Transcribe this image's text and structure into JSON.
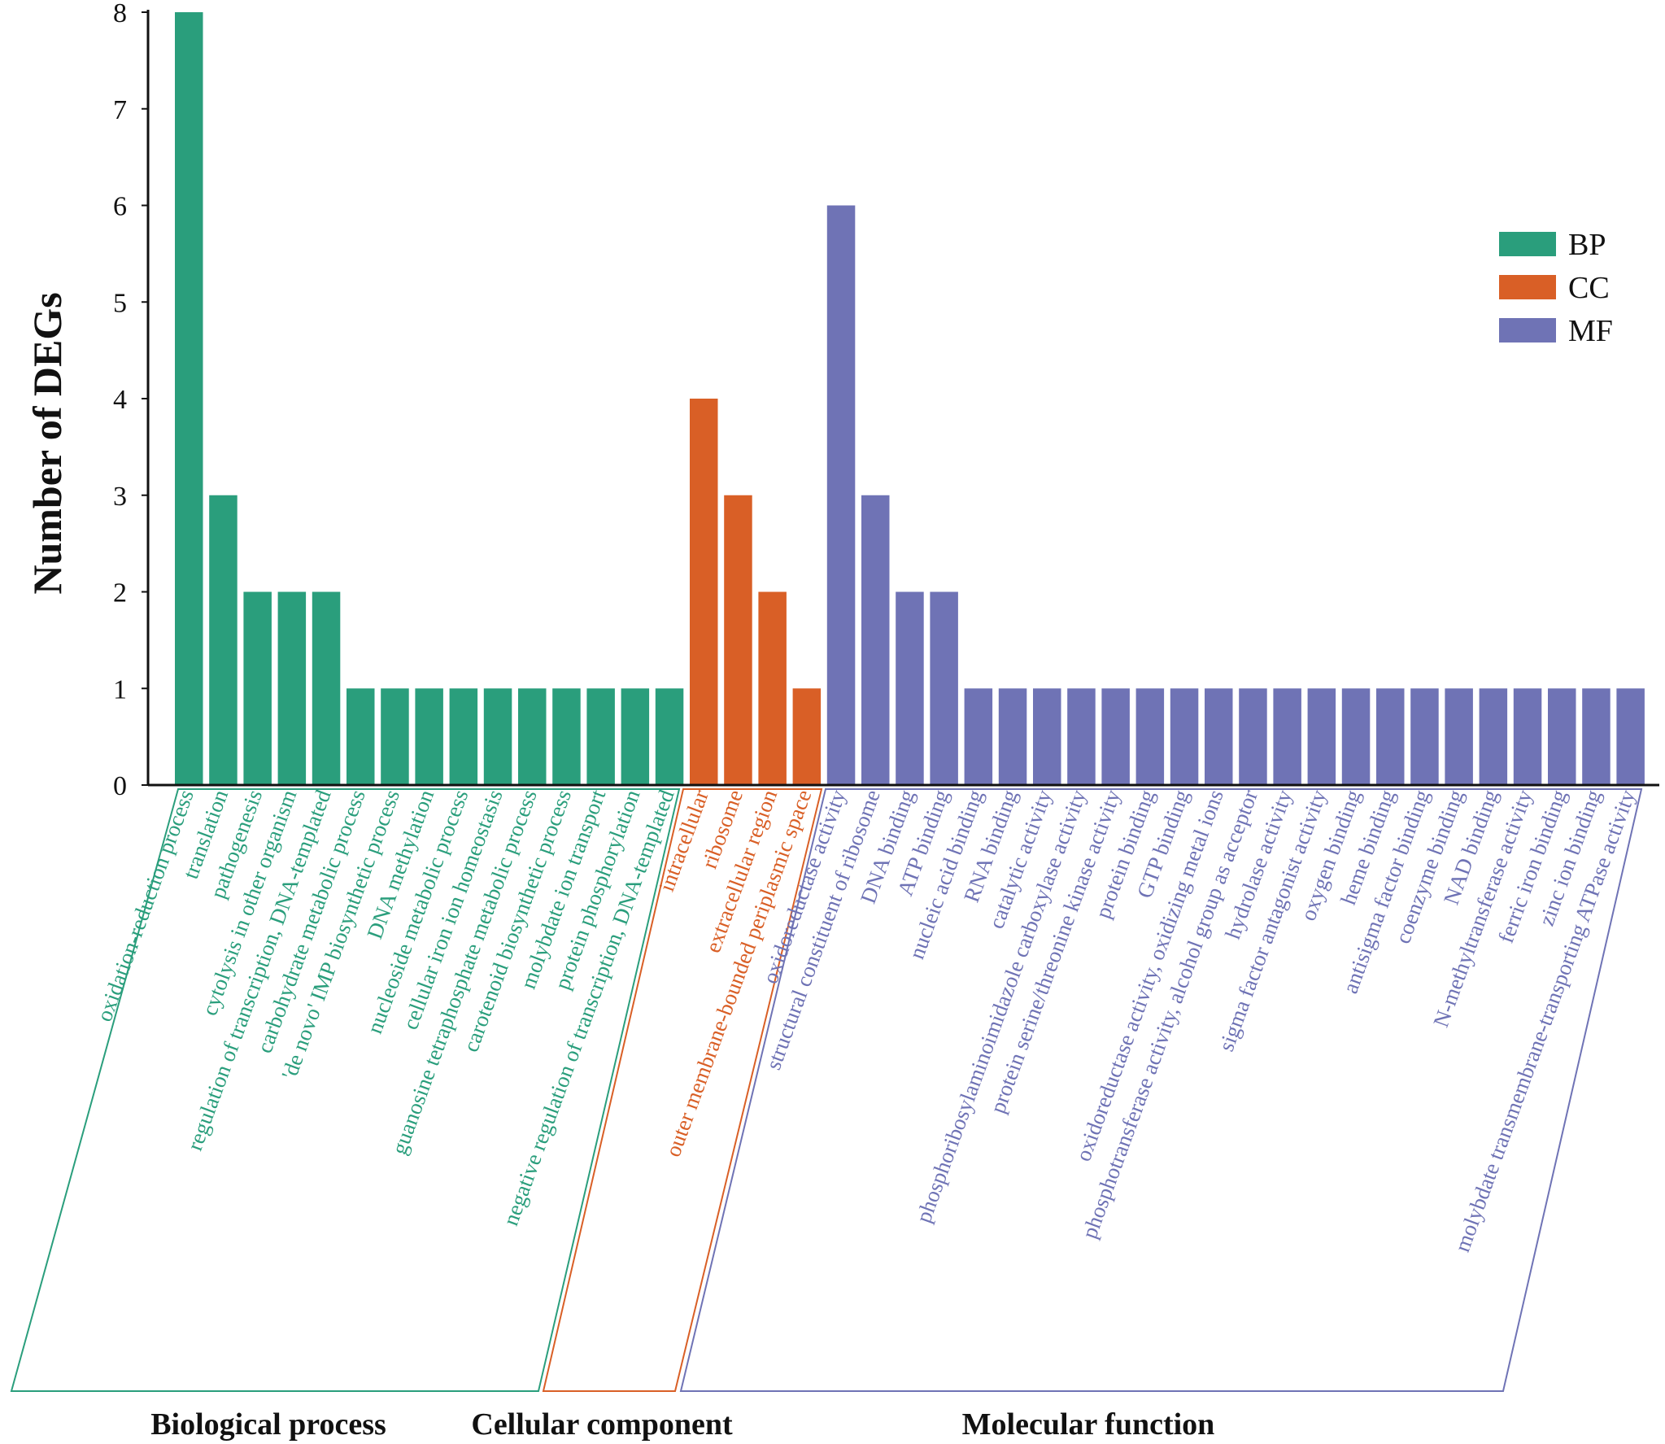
{
  "chart_data": {
    "type": "bar",
    "title": "",
    "xlabel": "",
    "ylabel": "Number of DEGs",
    "ylim": [
      0,
      8
    ],
    "yticks": [
      0,
      1,
      2,
      3,
      4,
      5,
      6,
      7,
      8
    ],
    "legend_position": "top-right",
    "legend": [
      {
        "name": "BP",
        "color": "#2a9e7c"
      },
      {
        "name": "CC",
        "color": "#d95f26"
      },
      {
        "name": "MF",
        "color": "#6f73b5"
      }
    ],
    "groups": [
      {
        "name": "Biological process",
        "key": "BP",
        "color": "#2a9e7c",
        "label_color": "#2a9e7c",
        "categories": [
          "oxidation-reduction process",
          "translation",
          "pathogenesis",
          "cytolysis in other organism",
          "regulation of transcription, DNA-templated",
          "carbohydrate metabolic process",
          "'de novo' IMP biosynthetic process",
          "DNA methylation",
          "nucleoside metabolic process",
          "cellular iron ion homeostasis",
          "guanosine tetraphosphate metabolic process",
          "carotenoid biosynthetic process",
          "molybdate ion transport",
          "protein phosphorylation",
          "negative regulation of transcription, DNA-templated"
        ],
        "values": [
          8,
          3,
          2,
          2,
          2,
          1,
          1,
          1,
          1,
          1,
          1,
          1,
          1,
          1,
          1
        ]
      },
      {
        "name": "Cellular component",
        "key": "CC",
        "color": "#d95f26",
        "label_color": "#d95f26",
        "categories": [
          "intracellular",
          "ribosome",
          "extracellular region",
          "outer membrane-bounded periplasmic space"
        ],
        "values": [
          4,
          3,
          2,
          1
        ]
      },
      {
        "name": "Molecular function",
        "key": "MF",
        "color": "#6f73b5",
        "label_color": "#6f73b5",
        "categories": [
          "oxidoreductase activity",
          "structural constituent of ribosome",
          "DNA binding",
          "ATP binding",
          "nucleic acid binding",
          "RNA binding",
          "catalytic activity",
          "phosphoribosylaminoimidazole carboxylase activity",
          "protein serine/threonine kinase activity",
          "protein binding",
          "GTP binding",
          "oxidoreductase activity, oxidizing metal ions",
          "phosphotransferase activity, alcohol group as acceptor",
          "hydrolase activity",
          "sigma factor antagonist activity",
          "oxygen binding",
          "heme binding",
          "antisigma factor binding",
          "coenzyme binding",
          "NAD binding",
          "N-methyltransferase activity",
          "ferric iron binding",
          "zinc ion binding",
          "molybdate transmembrane-transporting ATPase activity"
        ],
        "values": [
          6,
          3,
          2,
          2,
          1,
          1,
          1,
          1,
          1,
          1,
          1,
          1,
          1,
          1,
          1,
          1,
          1,
          1,
          1,
          1,
          1,
          1,
          1,
          1
        ]
      }
    ]
  }
}
